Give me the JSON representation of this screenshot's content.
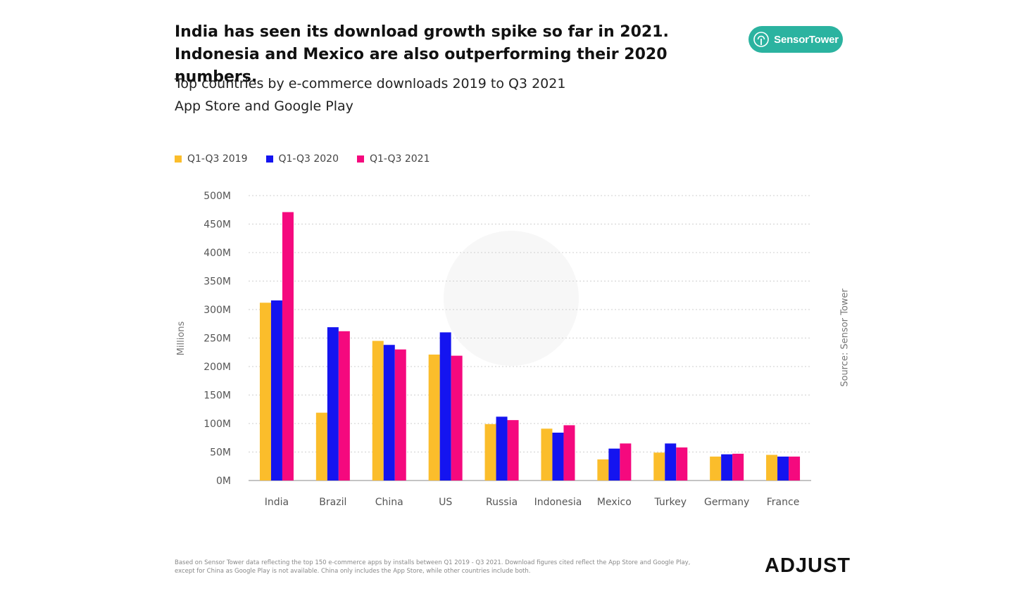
{
  "header": {
    "title": "India has seen its download growth spike so far in 2021. Indonesia and Mexico are also outperforming their 2020 numbers.",
    "subtitle_1": "Top countries by e-commerce downloads 2019 to Q3 2021",
    "subtitle_2": "App Store and Google Play",
    "brand_badge": "SensorTower"
  },
  "colors": {
    "q1_q3_2019": "#fbbd2b",
    "q1_q3_2020": "#1414f0",
    "q1_q3_2021": "#f5097e",
    "badge": "#2bb3a0"
  },
  "footer": {
    "footnote_line1": "Based on Sensor Tower data reflecting the top 150 e-commerce apps by installs between Q1 2019 - Q3 2021. Download figures cited reflect the App Store and Google Play,",
    "footnote_line2": "except for China as Google Play is not available. China only includes the App Store, while other countries include both.",
    "logo": "ADJUST",
    "source": "Source: Sensor Tower"
  },
  "chart_data": {
    "type": "bar",
    "ylabel": "Millions",
    "ylim": [
      0,
      500
    ],
    "yticks": [
      0,
      50,
      100,
      150,
      200,
      250,
      300,
      350,
      400,
      450,
      500
    ],
    "ytick_labels": [
      "0M",
      "50M",
      "100M",
      "150M",
      "200M",
      "250M",
      "300M",
      "350M",
      "400M",
      "450M",
      "500M"
    ],
    "grid": true,
    "legend_position": "top-left",
    "categories": [
      "India",
      "Brazil",
      "China",
      "US",
      "Russia",
      "Indonesia",
      "Mexico",
      "Turkey",
      "Germany",
      "France"
    ],
    "series": [
      {
        "name": "Q1-Q3 2019",
        "color": "#fbbd2b",
        "values": [
          312,
          119,
          245,
          221,
          99,
          91,
          37,
          49,
          42,
          45
        ]
      },
      {
        "name": "Q1-Q3 2020",
        "color": "#1414f0",
        "values": [
          316,
          269,
          238,
          260,
          112,
          84,
          56,
          65,
          46,
          42
        ]
      },
      {
        "name": "Q1-Q3 2021",
        "color": "#f5097e",
        "values": [
          471,
          262,
          230,
          219,
          106,
          97,
          65,
          58,
          47,
          42
        ]
      }
    ]
  }
}
